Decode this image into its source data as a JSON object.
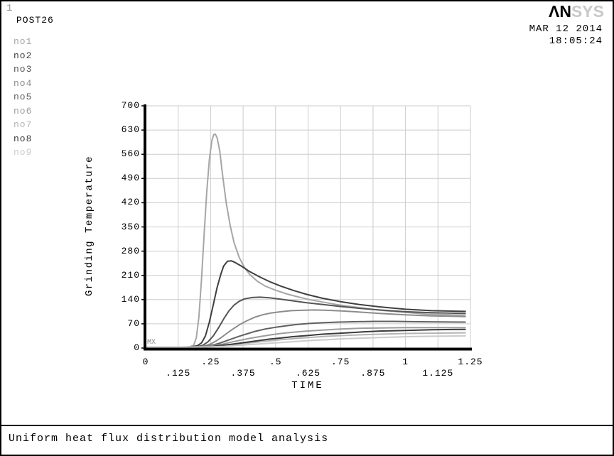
{
  "window": {
    "page_number": "1",
    "context_label": "POST26"
  },
  "logo": {
    "dark": "ΛN",
    "light": "SYS"
  },
  "datetime": {
    "date": "MAR 12 2014",
    "time": "18:05:24"
  },
  "legend": {
    "items": [
      {
        "label": "no1",
        "color": "#a6a6a6"
      },
      {
        "label": "no2",
        "color": "#3f3f3f"
      },
      {
        "label": "no3",
        "color": "#555555"
      },
      {
        "label": "no4",
        "color": "#8c8c8c"
      },
      {
        "label": "no5",
        "color": "#606060"
      },
      {
        "label": "no6",
        "color": "#9c9c9c"
      },
      {
        "label": "no7",
        "color": "#b4b4b4"
      },
      {
        "label": "no8",
        "color": "#3a3a3a"
      },
      {
        "label": "no9",
        "color": "#cbcbcb"
      }
    ]
  },
  "footer": {
    "caption": "Uniform heat flux distribution model analysis"
  },
  "chart_data": {
    "type": "line",
    "title": "",
    "xlabel": "TIME",
    "ylabel": "Grinding Temperature",
    "xlim": [
      0,
      1.25
    ],
    "ylim": [
      0,
      700
    ],
    "grid": true,
    "grid_color": "#cccccc",
    "axis_color": "#000000",
    "origin_marker": "MX",
    "legend_position": "top-left",
    "xticks_row1": [
      {
        "v": 0,
        "label": "0"
      },
      {
        "v": 0.25,
        "label": ".25"
      },
      {
        "v": 0.5,
        "label": ".5"
      },
      {
        "v": 0.75,
        "label": ".75"
      },
      {
        "v": 1,
        "label": "1"
      },
      {
        "v": 1.25,
        "label": "1.25"
      }
    ],
    "xticks_row2": [
      {
        "v": 0.125,
        "label": ".125"
      },
      {
        "v": 0.375,
        "label": ".375"
      },
      {
        "v": 0.625,
        "label": ".625"
      },
      {
        "v": 0.875,
        "label": ".875"
      },
      {
        "v": 1.125,
        "label": "1.125"
      }
    ],
    "yticks": [
      {
        "v": 0,
        "label": "0"
      },
      {
        "v": 70,
        "label": "70"
      },
      {
        "v": 140,
        "label": "140"
      },
      {
        "v": 210,
        "label": "210"
      },
      {
        "v": 280,
        "label": "280"
      },
      {
        "v": 350,
        "label": "350"
      },
      {
        "v": 420,
        "label": "420"
      },
      {
        "v": 490,
        "label": "490"
      },
      {
        "v": 560,
        "label": "560"
      },
      {
        "v": 630,
        "label": "630"
      },
      {
        "v": 700,
        "label": "700"
      }
    ],
    "series": [
      {
        "name": "no1",
        "color": "#a6a6a6",
        "points": [
          [
            0,
            3
          ],
          [
            0.14,
            3
          ],
          [
            0.17,
            4
          ],
          [
            0.185,
            8
          ],
          [
            0.195,
            30
          ],
          [
            0.205,
            90
          ],
          [
            0.215,
            200
          ],
          [
            0.225,
            330
          ],
          [
            0.235,
            450
          ],
          [
            0.245,
            545
          ],
          [
            0.255,
            600
          ],
          [
            0.262,
            617
          ],
          [
            0.268,
            618
          ],
          [
            0.275,
            608
          ],
          [
            0.285,
            570
          ],
          [
            0.295,
            505
          ],
          [
            0.31,
            420
          ],
          [
            0.325,
            355
          ],
          [
            0.34,
            305
          ],
          [
            0.36,
            262
          ],
          [
            0.38,
            233
          ],
          [
            0.4,
            213
          ],
          [
            0.43,
            193
          ],
          [
            0.46,
            179
          ],
          [
            0.5,
            167
          ],
          [
            0.54,
            157
          ],
          [
            0.58,
            149
          ],
          [
            0.63,
            140
          ],
          [
            0.68,
            133
          ],
          [
            0.74,
            125
          ],
          [
            0.8,
            119
          ],
          [
            0.86,
            113
          ],
          [
            0.92,
            108
          ],
          [
            1.0,
            103
          ],
          [
            1.08,
            98
          ],
          [
            1.23,
            95
          ]
        ]
      },
      {
        "name": "no2",
        "color": "#3f3f3f",
        "points": [
          [
            0,
            3
          ],
          [
            0.16,
            3
          ],
          [
            0.18,
            4
          ],
          [
            0.2,
            7
          ],
          [
            0.215,
            15
          ],
          [
            0.23,
            35
          ],
          [
            0.245,
            75
          ],
          [
            0.26,
            125
          ],
          [
            0.275,
            175
          ],
          [
            0.29,
            215
          ],
          [
            0.3,
            237
          ],
          [
            0.315,
            251
          ],
          [
            0.33,
            252
          ],
          [
            0.345,
            247
          ],
          [
            0.37,
            236
          ],
          [
            0.4,
            221
          ],
          [
            0.44,
            205
          ],
          [
            0.48,
            191
          ],
          [
            0.52,
            179
          ],
          [
            0.57,
            166
          ],
          [
            0.62,
            155
          ],
          [
            0.68,
            144
          ],
          [
            0.75,
            134
          ],
          [
            0.82,
            126
          ],
          [
            0.9,
            119
          ],
          [
            1.0,
            112
          ],
          [
            1.1,
            108
          ],
          [
            1.23,
            106
          ]
        ]
      },
      {
        "name": "no3",
        "color": "#555555",
        "points": [
          [
            0,
            3
          ],
          [
            0.17,
            3
          ],
          [
            0.2,
            4
          ],
          [
            0.22,
            8
          ],
          [
            0.24,
            18
          ],
          [
            0.26,
            35
          ],
          [
            0.28,
            58
          ],
          [
            0.3,
            84
          ],
          [
            0.32,
            107
          ],
          [
            0.34,
            124
          ],
          [
            0.36,
            135
          ],
          [
            0.38,
            142
          ],
          [
            0.41,
            146
          ],
          [
            0.44,
            147
          ],
          [
            0.48,
            145
          ],
          [
            0.52,
            141
          ],
          [
            0.57,
            136
          ],
          [
            0.62,
            131
          ],
          [
            0.68,
            126
          ],
          [
            0.75,
            120
          ],
          [
            0.82,
            115
          ],
          [
            0.9,
            110
          ],
          [
            1.0,
            105
          ],
          [
            1.1,
            102
          ],
          [
            1.23,
            100
          ]
        ]
      },
      {
        "name": "no4",
        "color": "#8c8c8c",
        "points": [
          [
            0,
            3
          ],
          [
            0.18,
            3
          ],
          [
            0.21,
            4
          ],
          [
            0.23,
            7
          ],
          [
            0.25,
            12
          ],
          [
            0.27,
            20
          ],
          [
            0.29,
            30
          ],
          [
            0.31,
            41
          ],
          [
            0.33,
            52
          ],
          [
            0.36,
            67
          ],
          [
            0.39,
            79
          ],
          [
            0.42,
            89
          ],
          [
            0.45,
            96
          ],
          [
            0.48,
            101
          ],
          [
            0.52,
            105
          ],
          [
            0.56,
            108
          ],
          [
            0.6,
            109
          ],
          [
            0.65,
            110
          ],
          [
            0.7,
            109
          ],
          [
            0.76,
            107
          ],
          [
            0.82,
            104
          ],
          [
            0.9,
            100
          ],
          [
            1.0,
            96
          ],
          [
            1.1,
            93
          ],
          [
            1.23,
            91
          ]
        ]
      },
      {
        "name": "no5",
        "color": "#606060",
        "points": [
          [
            0,
            3
          ],
          [
            0.19,
            3
          ],
          [
            0.22,
            4
          ],
          [
            0.24,
            6
          ],
          [
            0.26,
            9
          ],
          [
            0.28,
            13
          ],
          [
            0.3,
            18
          ],
          [
            0.33,
            26
          ],
          [
            0.36,
            34
          ],
          [
            0.39,
            41
          ],
          [
            0.42,
            48
          ],
          [
            0.46,
            55
          ],
          [
            0.5,
            60
          ],
          [
            0.54,
            64
          ],
          [
            0.58,
            68
          ],
          [
            0.63,
            71
          ],
          [
            0.68,
            73
          ],
          [
            0.74,
            75
          ],
          [
            0.8,
            76
          ],
          [
            0.88,
            77
          ],
          [
            0.96,
            77
          ],
          [
            1.05,
            76
          ],
          [
            1.23,
            75
          ]
        ]
      },
      {
        "name": "no6",
        "color": "#9c9c9c",
        "points": [
          [
            0,
            3
          ],
          [
            0.2,
            3
          ],
          [
            0.23,
            4
          ],
          [
            0.25,
            6
          ],
          [
            0.27,
            8
          ],
          [
            0.3,
            12
          ],
          [
            0.33,
            17
          ],
          [
            0.36,
            22
          ],
          [
            0.4,
            28
          ],
          [
            0.44,
            33
          ],
          [
            0.48,
            38
          ],
          [
            0.52,
            42
          ],
          [
            0.57,
            46
          ],
          [
            0.62,
            49
          ],
          [
            0.68,
            52
          ],
          [
            0.75,
            55
          ],
          [
            0.82,
            57
          ],
          [
            0.9,
            58
          ],
          [
            1.0,
            59
          ],
          [
            1.1,
            59
          ],
          [
            1.23,
            59
          ]
        ]
      },
      {
        "name": "no7",
        "color": "#b4b4b4",
        "points": [
          [
            0,
            3
          ],
          [
            0.21,
            3
          ],
          [
            0.24,
            4
          ],
          [
            0.27,
            5
          ],
          [
            0.3,
            7
          ],
          [
            0.33,
            9
          ],
          [
            0.36,
            12
          ],
          [
            0.4,
            15
          ],
          [
            0.44,
            18
          ],
          [
            0.48,
            21
          ],
          [
            0.52,
            24
          ],
          [
            0.57,
            27
          ],
          [
            0.62,
            30
          ],
          [
            0.68,
            33
          ],
          [
            0.75,
            36
          ],
          [
            0.82,
            38
          ],
          [
            0.9,
            40
          ],
          [
            1.0,
            42
          ],
          [
            1.1,
            43
          ],
          [
            1.23,
            44
          ]
        ]
      },
      {
        "name": "no8",
        "color": "#3a3a3a",
        "points": [
          [
            0,
            3
          ],
          [
            0.21,
            3
          ],
          [
            0.24,
            4
          ],
          [
            0.26,
            5
          ],
          [
            0.28,
            7
          ],
          [
            0.31,
            9
          ],
          [
            0.34,
            12
          ],
          [
            0.37,
            15
          ],
          [
            0.4,
            18
          ],
          [
            0.44,
            22
          ],
          [
            0.48,
            26
          ],
          [
            0.52,
            29
          ],
          [
            0.57,
            33
          ],
          [
            0.62,
            36
          ],
          [
            0.68,
            40
          ],
          [
            0.75,
            43
          ],
          [
            0.82,
            46
          ],
          [
            0.9,
            49
          ],
          [
            1.0,
            51
          ],
          [
            1.1,
            53
          ],
          [
            1.23,
            54
          ]
        ]
      },
      {
        "name": "no9",
        "color": "#cbcbcb",
        "points": [
          [
            0,
            3
          ],
          [
            0.22,
            3
          ],
          [
            0.26,
            4
          ],
          [
            0.3,
            5
          ],
          [
            0.34,
            7
          ],
          [
            0.38,
            9
          ],
          [
            0.42,
            11
          ],
          [
            0.46,
            13
          ],
          [
            0.52,
            16
          ],
          [
            0.58,
            19
          ],
          [
            0.64,
            22
          ],
          [
            0.7,
            24
          ],
          [
            0.77,
            27
          ],
          [
            0.85,
            29
          ],
          [
            0.93,
            31
          ],
          [
            1.02,
            33
          ],
          [
            1.1,
            34
          ],
          [
            1.23,
            35
          ]
        ]
      }
    ]
  }
}
